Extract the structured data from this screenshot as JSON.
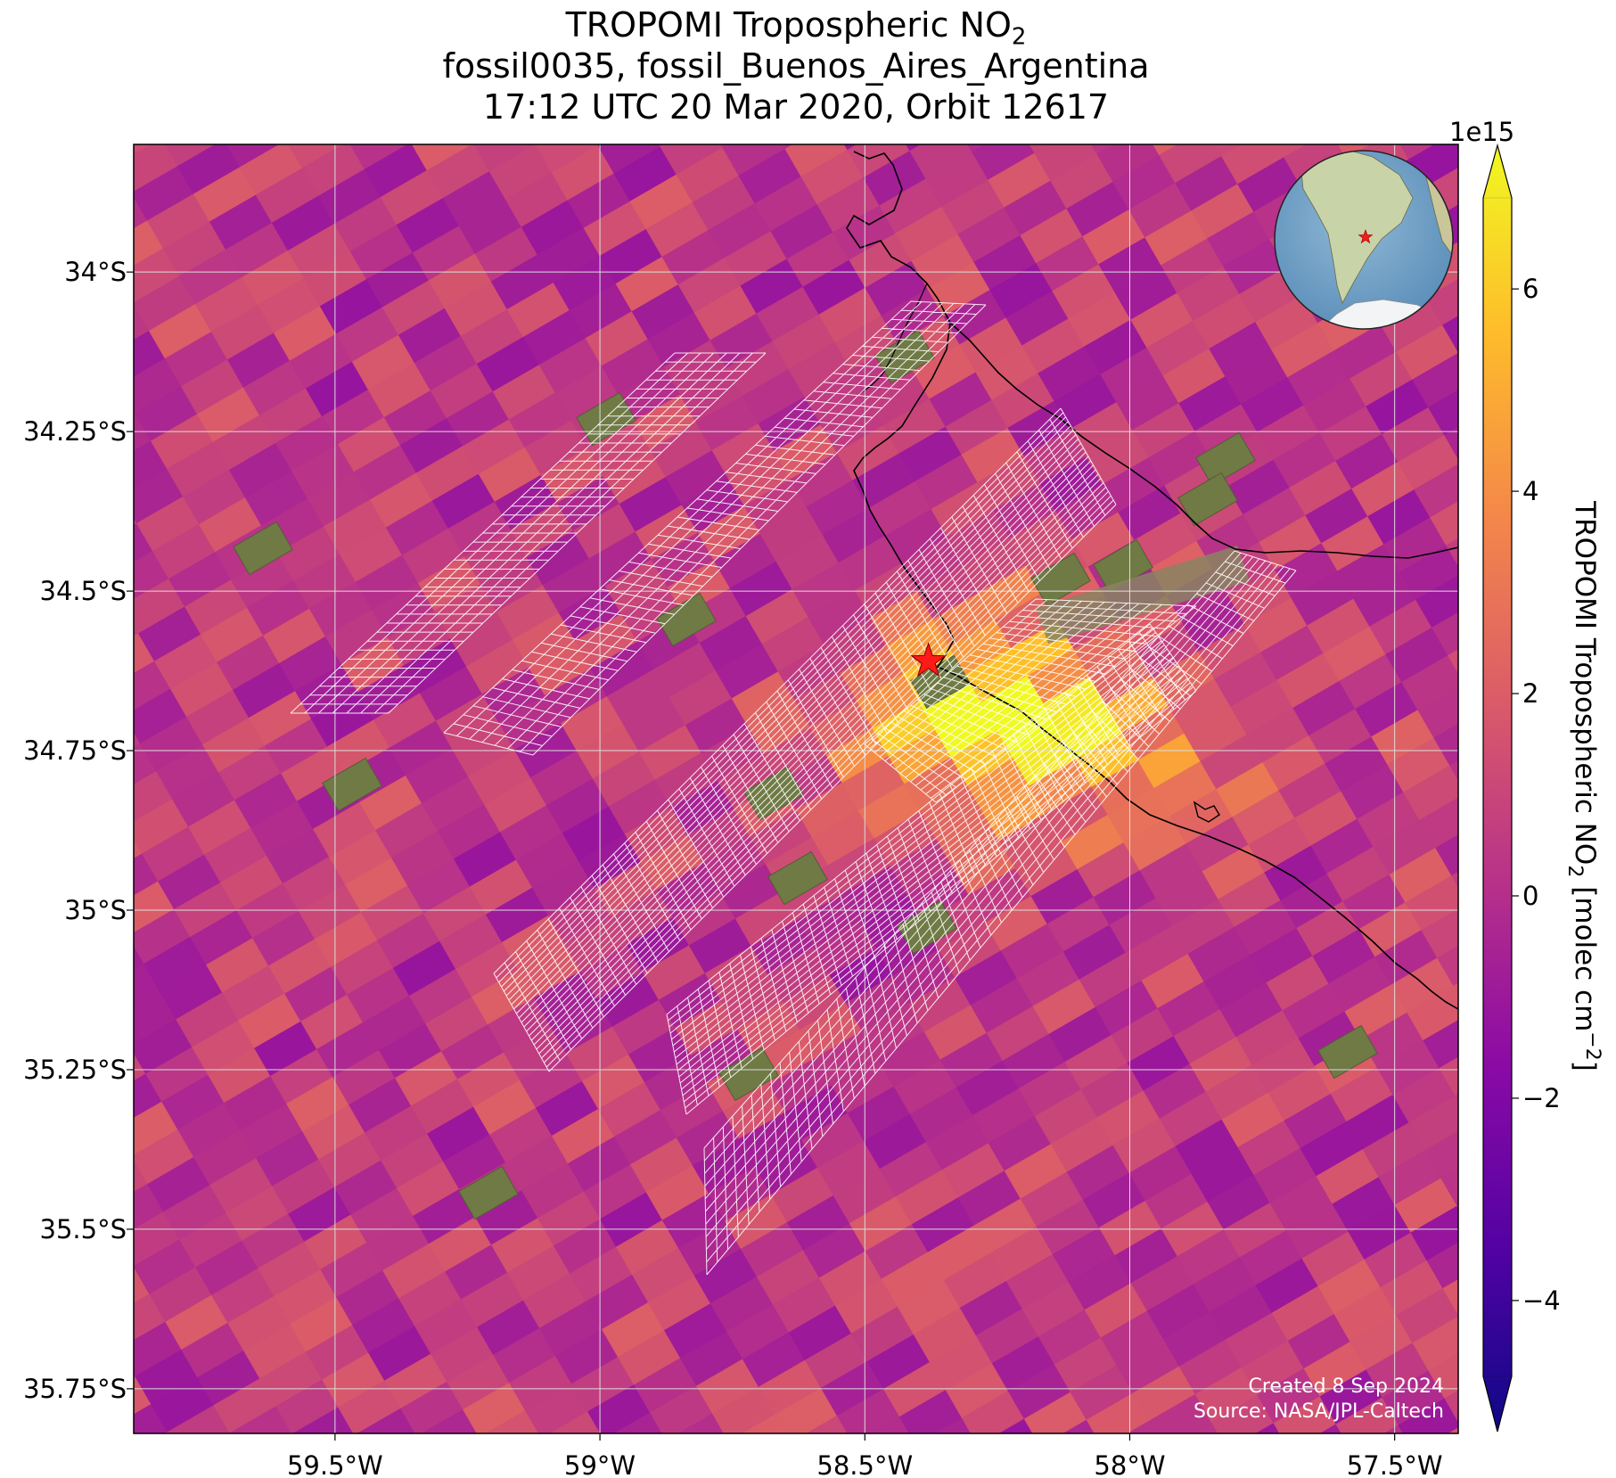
{
  "title": {
    "line1_text": "TROPOMI Tropospheric NO",
    "line1_sub": "2",
    "line2": "fossil0035, fossil_Buenos_Aires_Argentina",
    "line3": "17:12 UTC 20 Mar 2020, Orbit 12617"
  },
  "map": {
    "lon_range": [
      -59.88,
      -57.38
    ],
    "lat_range": [
      -35.82,
      -33.8
    ],
    "x_ticks": [
      {
        "lon": -59.5,
        "label": "59.5°W"
      },
      {
        "lon": -59.0,
        "label": "59°W"
      },
      {
        "lon": -58.5,
        "label": "58.5°W"
      },
      {
        "lon": -58.0,
        "label": "58°W"
      },
      {
        "lon": -57.5,
        "label": "57.5°W"
      }
    ],
    "y_ticks": [
      {
        "lat": -34.0,
        "label": "34°S"
      },
      {
        "lat": -34.25,
        "label": "34.25°S"
      },
      {
        "lat": -34.5,
        "label": "34.5°S"
      },
      {
        "lat": -34.75,
        "label": "34.75°S"
      },
      {
        "lat": -35.0,
        "label": "35°S"
      },
      {
        "lat": -35.25,
        "label": "35.25°S"
      },
      {
        "lat": -35.5,
        "label": "35.5°S"
      },
      {
        "lat": -35.75,
        "label": "35.75°S"
      }
    ],
    "source_marker": {
      "lon": -58.38,
      "lat": -34.61,
      "color": "#ff1a1a"
    },
    "gridline_color": "#dddddd",
    "coastline_color": "#000000",
    "target_grid_color": "#ffffff"
  },
  "colorbar": {
    "label_text": "TROPOMI Tropospheric NO",
    "label_sub": "2",
    "label_units": " [molec cm",
    "label_sup": "−2",
    "label_end": "]",
    "multiplier": "1e15",
    "range": [
      -4.75,
      6.9
    ],
    "ticks": [
      {
        "value": 6,
        "label": "6"
      },
      {
        "value": 4,
        "label": "4"
      },
      {
        "value": 2,
        "label": "2"
      },
      {
        "value": 0,
        "label": "0"
      },
      {
        "value": -2,
        "label": "−2"
      },
      {
        "value": -4,
        "label": "−4"
      }
    ],
    "colormap": [
      "#0d0887",
      "#5302a3",
      "#8b0aa5",
      "#b83289",
      "#db5c68",
      "#f48849",
      "#febd2a",
      "#f0f921"
    ],
    "extend": "both"
  },
  "credits": {
    "created": "Created 8 Sep 2024",
    "source": "Source: NASA/JPL-Caltech"
  },
  "inset_globe": {
    "center": "South America",
    "marker_color": "#ff1a1a"
  }
}
